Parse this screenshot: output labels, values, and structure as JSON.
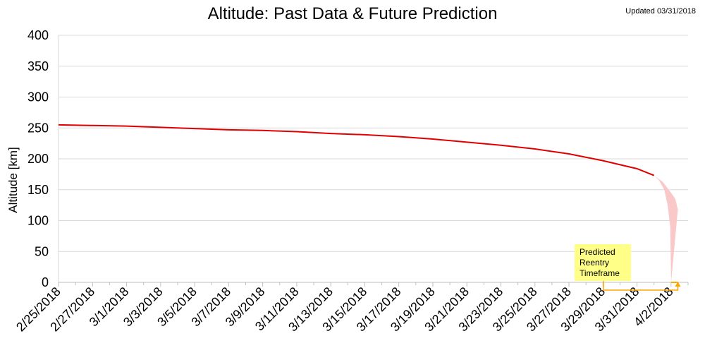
{
  "chart_data": {
    "type": "line",
    "title": "Altitude: Past Data & Future Prediction",
    "updated_note": "Updated 03/31/2018",
    "ylabel": "Altitude [km]",
    "xlabel": "",
    "ylim": [
      0,
      400
    ],
    "yticks": [
      0,
      50,
      100,
      150,
      200,
      250,
      300,
      350,
      400
    ],
    "xlim": [
      "2018-02-25",
      "2018-04-03"
    ],
    "xtick_labels": [
      "2/25/2018",
      "2/27/2018",
      "3/1/2018",
      "3/3/2018",
      "3/5/2018",
      "3/7/2018",
      "3/9/2018",
      "3/11/2018",
      "3/13/2018",
      "3/15/2018",
      "3/17/2018",
      "3/19/2018",
      "3/21/2018",
      "3/23/2018",
      "3/25/2018",
      "3/27/2018",
      "3/29/2018",
      "3/31/2018",
      "4/2/2018"
    ],
    "grid": true,
    "series": [
      {
        "color": "#e00000",
        "x": [
          "2018-02-25",
          "2018-02-27",
          "2018-03-01",
          "2018-03-03",
          "2018-03-05",
          "2018-03-07",
          "2018-03-09",
          "2018-03-11",
          "2018-03-13",
          "2018-03-15",
          "2018-03-17",
          "2018-03-19",
          "2018-03-21",
          "2018-03-23",
          "2018-03-25",
          "2018-03-27",
          "2018-03-29",
          "2018-03-31",
          "2018-04-01"
        ],
        "y": [
          255,
          254,
          253,
          251,
          249,
          247,
          246,
          244,
          241,
          239,
          236,
          232,
          227,
          222,
          216,
          208,
          197,
          184,
          173
        ]
      }
    ],
    "prediction_band": {
      "color": "#f9c8c8",
      "upper": {
        "x": [
          "2018-04-01",
          "2018-04-01T12:00",
          "2018-04-02",
          "2018-04-02T06:00",
          "2018-04-02T09:36"
        ],
        "y": [
          173,
          163,
          145,
          135,
          118
        ]
      },
      "lower": {
        "x": [
          "2018-04-01",
          "2018-04-01T07:12",
          "2018-04-01T14:24",
          "2018-04-01T19:12",
          "2018-04-01T22:48",
          "2018-04-02"
        ],
        "y": [
          173,
          165,
          150,
          125,
          90,
          0
        ]
      }
    },
    "annotation": {
      "text": [
        "Predicted",
        "Reentry",
        "Timeframe"
      ],
      "box_color": "#ffff88",
      "bracket_color": "#ffa500",
      "x_range": [
        "2018-04-02",
        "2018-04-02T09:36"
      ]
    }
  }
}
